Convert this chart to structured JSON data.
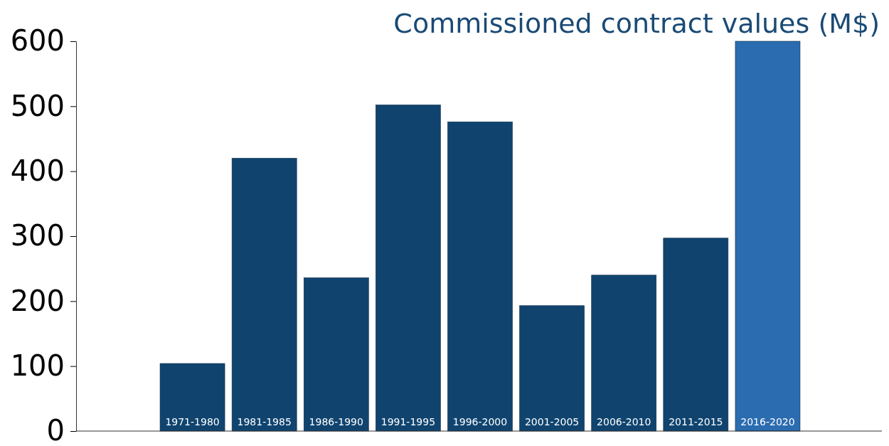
{
  "chart_data": {
    "type": "bar",
    "title": "Commissioned contract values (M$)",
    "categories": [
      "1971-1980",
      "1981-1985",
      "1986-1990",
      "1991-1995",
      "1996-2000",
      "2001-2005",
      "2006-2010",
      "2011-2015",
      "2016-2020"
    ],
    "values": [
      104,
      420,
      236,
      502,
      476,
      193,
      240,
      297,
      600
    ],
    "colors": [
      "#10446f",
      "#10446f",
      "#10446f",
      "#10446f",
      "#10446f",
      "#10446f",
      "#10446f",
      "#10446f",
      "#2b6cb0"
    ],
    "ylim": [
      0,
      600
    ],
    "yticks": [
      0,
      100,
      200,
      300,
      400,
      500,
      600
    ],
    "grid": false
  }
}
